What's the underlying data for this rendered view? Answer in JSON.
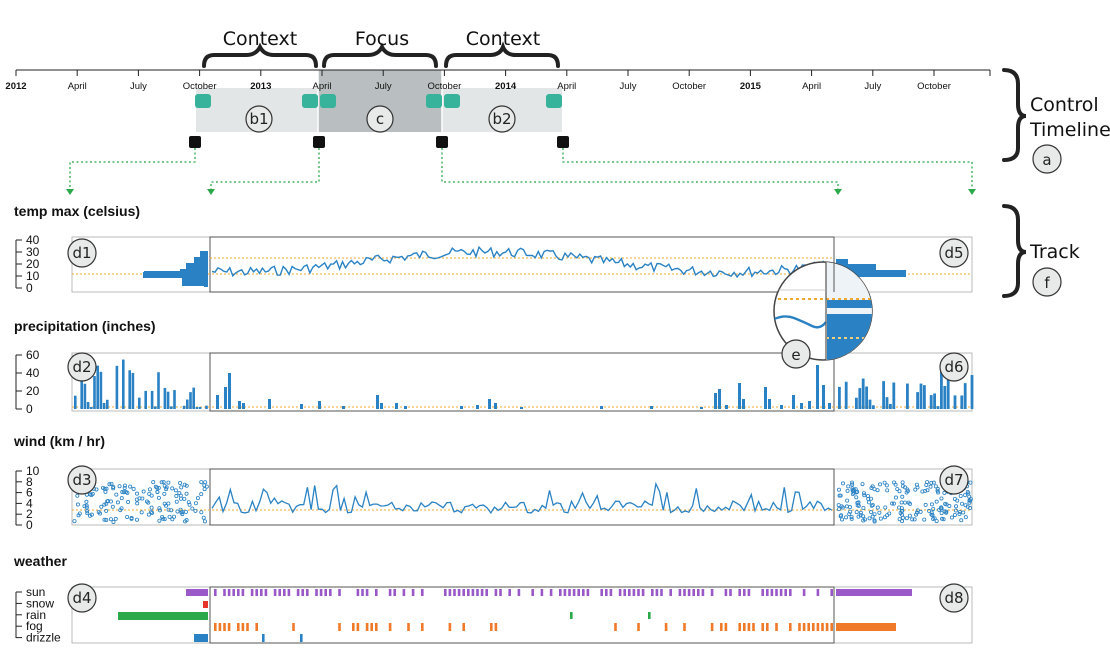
{
  "timeline": {
    "labels": [
      "2012",
      "April",
      "July",
      "October",
      "2013",
      "April",
      "July",
      "October",
      "2014",
      "April",
      "July",
      "October",
      "2015",
      "April",
      "July",
      "October"
    ],
    "year_labels": [
      "2012",
      "2013",
      "2014",
      "2015"
    ]
  },
  "brackets": {
    "context_left": "Context",
    "focus": "Focus",
    "context_right": "Context"
  },
  "regions": {
    "b1": "b1",
    "c": "c",
    "b2": "b2"
  },
  "side_labels": {
    "control_line1": "Control",
    "control_line2": "Timeline",
    "control_marker": "a",
    "track": "Track",
    "track_marker": "f"
  },
  "callouts": {
    "e": "e",
    "d1": "d1",
    "d2": "d2",
    "d3": "d3",
    "d4": "d4",
    "d5": "d5",
    "d6": "d6",
    "d7": "d7",
    "d8": "d8"
  },
  "tracks": {
    "temp": {
      "title": "temp max (celsius)",
      "ticks": [
        "40",
        "30",
        "20",
        "10",
        "0"
      ]
    },
    "precip": {
      "title": "precipitation (inches)",
      "ticks": [
        "60",
        "40",
        "20",
        "0"
      ]
    },
    "wind": {
      "title": "wind (km / hr)",
      "ticks": [
        "10",
        "8",
        "6",
        "4",
        "2",
        "0"
      ]
    },
    "weather": {
      "title": "weather",
      "categories": [
        "sun",
        "snow",
        "rain",
        "fog",
        "drizzle"
      ]
    }
  },
  "chart_data": [
    {
      "type": "line",
      "title": "temp max (celsius)",
      "ylim": [
        0,
        40
      ],
      "ticks": [
        0,
        10,
        20,
        30,
        40
      ],
      "mean_line": 10
    },
    {
      "type": "bar",
      "title": "precipitation (inches)",
      "ylim": [
        0,
        60
      ],
      "ticks": [
        0,
        20,
        40,
        60
      ],
      "mean_line": 2
    },
    {
      "type": "scatter",
      "title": "wind (km / hr)",
      "ylim": [
        0,
        10
      ],
      "ticks": [
        0,
        2,
        4,
        6,
        8,
        10
      ],
      "mean_line": 3
    },
    {
      "type": "bar",
      "title": "weather",
      "categories": [
        "sun",
        "snow",
        "rain",
        "fog",
        "drizzle"
      ]
    }
  ],
  "colors": {
    "accent": "#2a82c4",
    "mean": "#f0a830",
    "handle": "#36b39a",
    "focus_bg": "#b9bfc0",
    "context_bg": "#e3e6e6",
    "dotted_green": "#2aa84a",
    "sun": "#9a58c9",
    "snow": "#e8332a",
    "rain": "#2aa84a",
    "fog": "#f07a2a",
    "drizzle": "#2a82c4"
  }
}
